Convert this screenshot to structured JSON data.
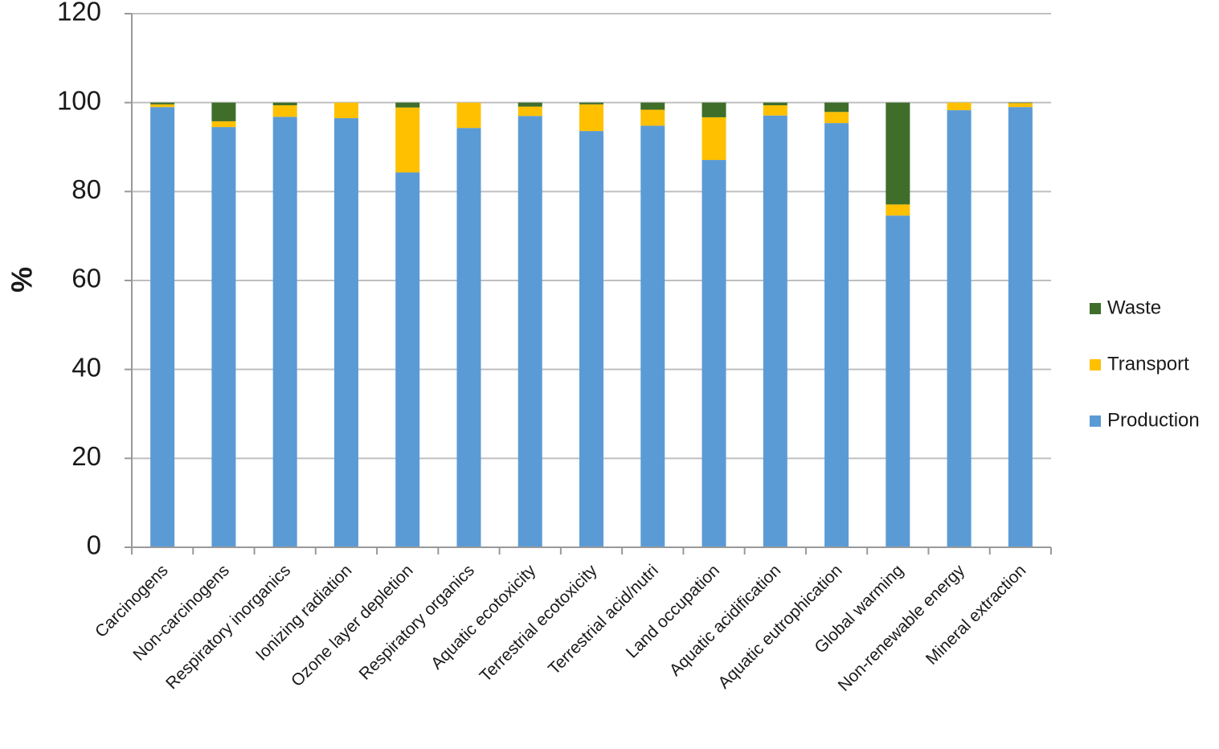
{
  "chart_data": {
    "type": "bar",
    "stacked": true,
    "title": "",
    "xlabel": "",
    "ylabel": "%",
    "ylim": [
      0,
      120
    ],
    "y_ticks": [
      0,
      20,
      40,
      60,
      80,
      100,
      120
    ],
    "grid": "horizontal",
    "legend_position": "right",
    "categories": [
      "Carcinogens",
      "Non-carcinogens",
      "Respiratory inorganics",
      "Ionizing radiation",
      "Ozone layer depletion",
      "Respiratory organics",
      "Aquatic ecotoxicity",
      "Terrestrial ecotoxicity",
      "Terrestrial acid/nutri",
      "Land occupation",
      "Aquatic acidification",
      "Aquatic eutrophication",
      "Global warming",
      "Non-renewable energy",
      "Mineral extraction"
    ],
    "series": [
      {
        "name": "Production",
        "color": "#5b9bd5",
        "values": [
          99,
          94.5,
          96.8,
          96.5,
          84.3,
          94.3,
          97,
          93.6,
          94.8,
          87.1,
          97.1,
          95.4,
          74.6,
          98.3,
          99
        ]
      },
      {
        "name": "Transport",
        "color": "#ffc000",
        "values": [
          0.6,
          1.3,
          2.6,
          3.5,
          14.6,
          5.7,
          2.1,
          6,
          3.6,
          9.6,
          2.3,
          2.5,
          2.5,
          1.7,
          0.9
        ]
      },
      {
        "name": "Waste",
        "color": "#3f6e2a",
        "values": [
          0.4,
          4.2,
          0.6,
          0,
          1.1,
          0,
          0.9,
          0.4,
          1.6,
          3.3,
          0.6,
          2.1,
          22.9,
          0,
          0.1
        ]
      }
    ],
    "legend_order": [
      "Waste",
      "Transport",
      "Production"
    ]
  },
  "colors": {
    "axis": "#999999",
    "grid": "#bfbfbf",
    "text": "#1a1a1a"
  }
}
